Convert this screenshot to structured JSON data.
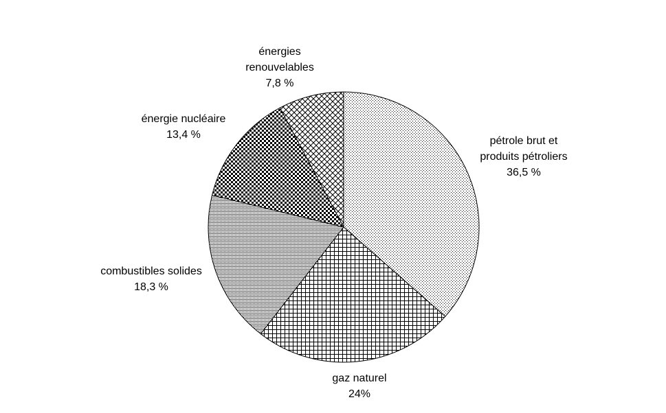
{
  "chart_data": {
    "type": "pie",
    "start_angle_deg": 0,
    "direction": "clockwise",
    "slices": [
      {
        "name_lines": [
          "pétrole brut et",
          "produits pétroliers"
        ],
        "value_label": "36,5 %",
        "value": 36.5,
        "pattern": "fine-dots"
      },
      {
        "name_lines": [
          "gaz naturel"
        ],
        "value_label": "24%",
        "value": 24.0,
        "pattern": "square-grid"
      },
      {
        "name_lines": [
          "combustibles solides"
        ],
        "value_label": "18,3 %",
        "value": 18.3,
        "pattern": "light-grid"
      },
      {
        "name_lines": [
          "énergie nucléaire"
        ],
        "value_label": "13,4 %",
        "value": 13.4,
        "pattern": "checkerboard"
      },
      {
        "name_lines": [
          "énergies",
          "renouvelables"
        ],
        "value_label": "7,8 %",
        "value": 7.8,
        "pattern": "diagonal-crosshatch"
      }
    ]
  }
}
